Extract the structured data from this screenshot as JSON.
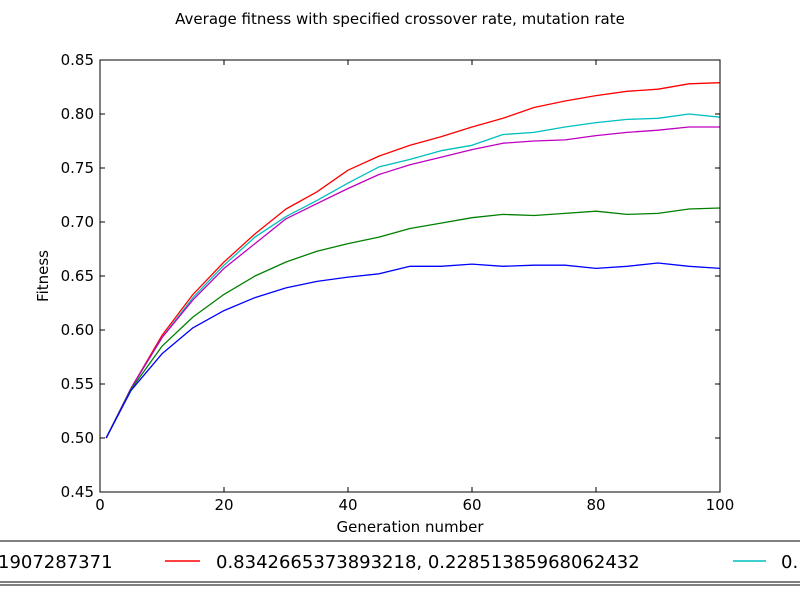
{
  "chart_data": {
    "type": "line",
    "title": "Average fitness with specified crossover rate, mutation rate",
    "xlabel": "Generation number",
    "ylabel": "Fitness",
    "xlim": [
      0,
      100
    ],
    "ylim": [
      0.45,
      0.85
    ],
    "xticks": [
      0,
      20,
      40,
      60,
      80,
      100
    ],
    "yticks": [
      0.45,
      0.5,
      0.55,
      0.6,
      0.65,
      0.7,
      0.75,
      0.8,
      0.85
    ],
    "grid": false,
    "legend": {
      "placement": "bottom, partially cut off",
      "entries": [
        {
          "text": "1907287371",
          "color": "#0000ff"
        },
        {
          "text": "0.8342665373893218, 0.22851385968062432",
          "color": "#ff0000"
        },
        {
          "text": "0.",
          "color": "#00bfbf"
        }
      ]
    },
    "series": [
      {
        "color": "#ff0000",
        "x": [
          1,
          5,
          10,
          15,
          20,
          25,
          30,
          35,
          40,
          45,
          50,
          55,
          60,
          65,
          70,
          75,
          80,
          85,
          90,
          95,
          100
        ],
        "values": [
          0.5,
          0.546,
          0.595,
          0.633,
          0.663,
          0.689,
          0.712,
          0.728,
          0.748,
          0.761,
          0.771,
          0.779,
          0.788,
          0.796,
          0.806,
          0.812,
          0.817,
          0.821,
          0.823,
          0.828,
          0.829
        ]
      },
      {
        "color": "#00bfbf",
        "x": [
          1,
          5,
          10,
          15,
          20,
          25,
          30,
          35,
          40,
          45,
          50,
          55,
          60,
          65,
          70,
          75,
          80,
          85,
          90,
          95,
          100
        ],
        "values": [
          0.5,
          0.546,
          0.593,
          0.63,
          0.66,
          0.686,
          0.705,
          0.72,
          0.736,
          0.751,
          0.758,
          0.766,
          0.771,
          0.781,
          0.783,
          0.788,
          0.792,
          0.795,
          0.796,
          0.8,
          0.797
        ]
      },
      {
        "color": "#bf00bf",
        "x": [
          1,
          5,
          10,
          15,
          20,
          25,
          30,
          35,
          40,
          45,
          50,
          55,
          60,
          65,
          70,
          75,
          80,
          85,
          90,
          95,
          100
        ],
        "values": [
          0.5,
          0.546,
          0.593,
          0.628,
          0.657,
          0.68,
          0.703,
          0.717,
          0.731,
          0.744,
          0.753,
          0.76,
          0.767,
          0.773,
          0.775,
          0.776,
          0.78,
          0.783,
          0.785,
          0.788,
          0.788
        ]
      },
      {
        "color": "#008000",
        "x": [
          1,
          5,
          10,
          15,
          20,
          25,
          30,
          35,
          40,
          45,
          50,
          55,
          60,
          65,
          70,
          75,
          80,
          85,
          90,
          95,
          100
        ],
        "values": [
          0.5,
          0.545,
          0.585,
          0.612,
          0.633,
          0.65,
          0.663,
          0.673,
          0.68,
          0.686,
          0.694,
          0.699,
          0.704,
          0.707,
          0.706,
          0.708,
          0.71,
          0.707,
          0.708,
          0.712,
          0.713
        ]
      },
      {
        "color": "#0000ff",
        "x": [
          1,
          5,
          10,
          15,
          20,
          25,
          30,
          35,
          40,
          45,
          50,
          55,
          60,
          65,
          70,
          75,
          80,
          85,
          90,
          95,
          100
        ],
        "values": [
          0.5,
          0.544,
          0.578,
          0.602,
          0.618,
          0.63,
          0.639,
          0.645,
          0.649,
          0.652,
          0.659,
          0.659,
          0.661,
          0.659,
          0.66,
          0.66,
          0.657,
          0.659,
          0.662,
          0.659,
          0.657
        ]
      }
    ]
  }
}
